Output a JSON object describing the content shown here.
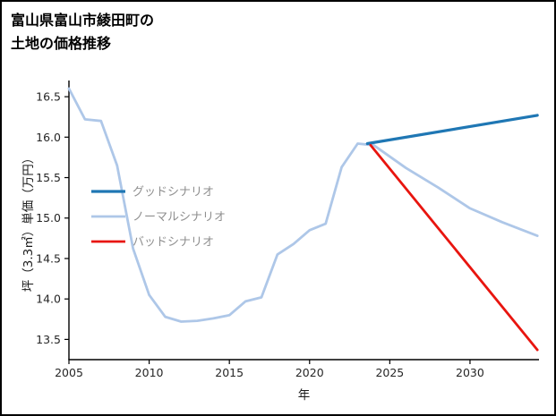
{
  "title": {
    "line1": "富山県富山市綾田町の",
    "line2": "土地の価格推移"
  },
  "legend": {
    "position": "center-left",
    "text_color": "#8f8f8f",
    "items": [
      {
        "label": "グッドシナリオ",
        "color": "#1f77b4",
        "stroke_width": 3.2
      },
      {
        "label": "ノーマルシナリオ",
        "color": "#aec7e8",
        "stroke_width": 2.8
      },
      {
        "label": "バッドシナリオ",
        "color": "#e8150f",
        "stroke_width": 2.8
      }
    ]
  },
  "chart_data": {
    "type": "line",
    "title": "富山県富山市綾田町の土地の価格推移",
    "xlabel": "年",
    "ylabel": "坪（3.3㎡）単価（万円）",
    "xlim": [
      2005,
      2034.3
    ],
    "ylim": [
      13.25,
      16.7
    ],
    "xticks": [
      2005,
      2010,
      2015,
      2020,
      2025,
      2030
    ],
    "yticks": [
      13.5,
      14.0,
      14.5,
      15.0,
      15.5,
      16.0,
      16.5
    ],
    "grid": false,
    "legend_position": "center-left",
    "series": [
      {
        "name": "ノーマルシナリオ",
        "color": "#aec7e8",
        "stroke_width": 2.8,
        "x": [
          2005,
          2006,
          2007,
          2008,
          2009,
          2010,
          2011,
          2012,
          2013,
          2014,
          2015,
          2016,
          2017,
          2018,
          2019,
          2020,
          2021,
          2022,
          2023,
          2024,
          2026,
          2028,
          2030,
          2032,
          2034.2
        ],
        "y": [
          16.6,
          16.22,
          16.2,
          15.65,
          14.62,
          14.05,
          13.78,
          13.72,
          13.73,
          13.76,
          13.8,
          13.97,
          14.02,
          14.55,
          14.68,
          14.85,
          14.93,
          15.63,
          15.92,
          15.9,
          15.62,
          15.38,
          15.12,
          14.95,
          14.78
        ]
      },
      {
        "name": "グッドシナリオ",
        "color": "#1f77b4",
        "stroke_width": 3.2,
        "x": [
          2023.6,
          2034.2
        ],
        "y": [
          15.92,
          16.27
        ]
      },
      {
        "name": "バッドシナリオ",
        "color": "#e8150f",
        "stroke_width": 2.8,
        "x": [
          2023.8,
          2034.2
        ],
        "y": [
          15.9,
          13.37
        ]
      }
    ]
  }
}
